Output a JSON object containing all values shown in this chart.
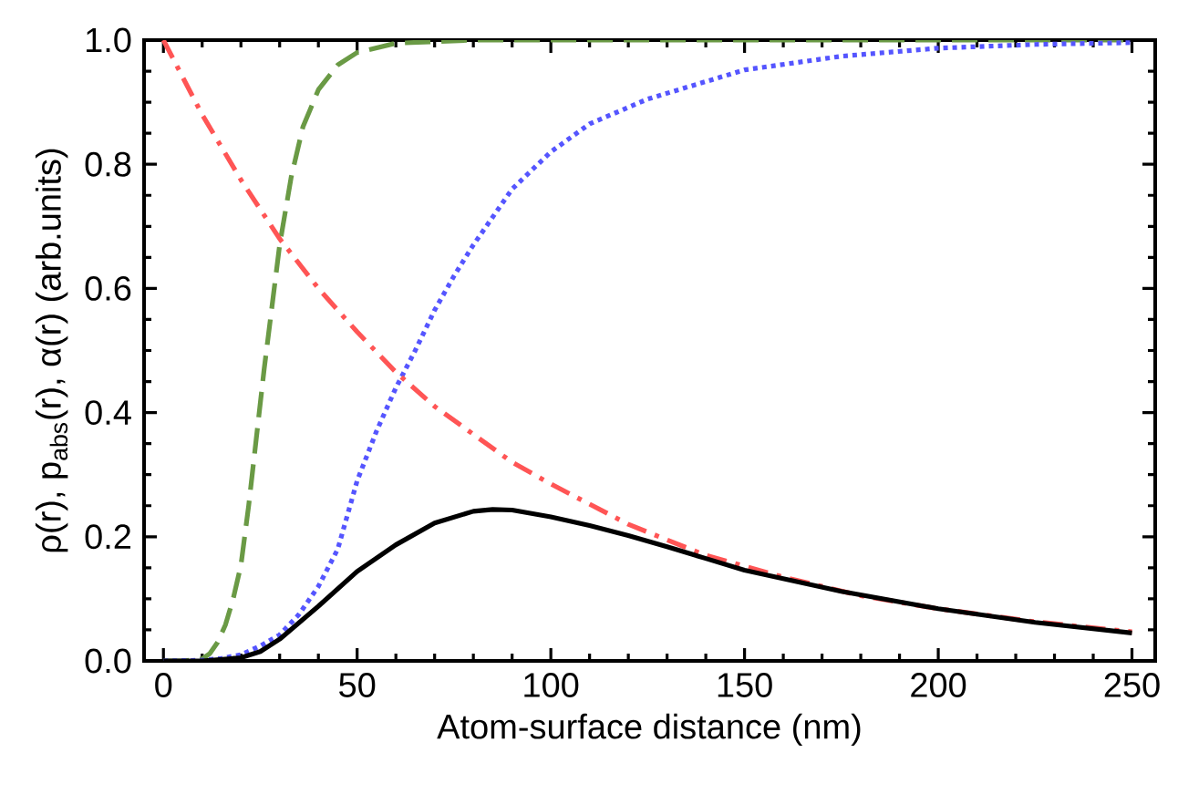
{
  "chart_data": {
    "type": "line",
    "xlabel": "Atom-surface distance (nm)",
    "ylabel": "ρ(r), p$_{abs}$(r), α(r)  (arb.units)",
    "xlim": [
      -5,
      256
    ],
    "ylim": [
      0,
      1
    ],
    "xticks": [
      0,
      50,
      100,
      150,
      200,
      250
    ],
    "yticks": [
      {
        "value": 0,
        "label": "0.0"
      },
      {
        "value": 0.2,
        "label": "0.2"
      },
      {
        "value": 0.4,
        "label": "0.4"
      },
      {
        "value": 0.6,
        "label": "0.6"
      },
      {
        "value": 0.8,
        "label": "0.8"
      },
      {
        "value": 1,
        "label": "1.0"
      }
    ],
    "series": [
      {
        "color": "#6a9a45",
        "line_style": "dashed",
        "x": [
          0,
          5,
          10,
          12,
          14,
          16,
          18,
          20,
          22,
          24,
          26,
          28,
          30,
          33,
          36,
          40,
          45,
          50,
          60,
          80,
          100,
          150,
          200,
          250
        ],
        "values": [
          0,
          0,
          0.003,
          0.012,
          0.03,
          0.058,
          0.1,
          0.154,
          0.25,
          0.36,
          0.47,
          0.57,
          0.67,
          0.78,
          0.86,
          0.92,
          0.96,
          0.98,
          0.995,
          1.0,
          1.0,
          1.0,
          1.0,
          1.0
        ]
      },
      {
        "color": "#5555ff",
        "line_style": "dotted",
        "x": [
          0,
          10,
          15,
          20,
          25,
          30,
          35,
          40,
          45,
          50,
          55,
          60,
          65,
          70,
          75,
          80,
          90,
          100,
          110,
          125,
          150,
          175,
          200,
          225,
          250
        ],
        "values": [
          0,
          0.001,
          0.004,
          0.01,
          0.024,
          0.042,
          0.075,
          0.12,
          0.18,
          0.29,
          0.37,
          0.44,
          0.5,
          0.565,
          0.62,
          0.67,
          0.76,
          0.82,
          0.865,
          0.905,
          0.952,
          0.974,
          0.987,
          0.993,
          0.996
        ]
      },
      {
        "color": "#ff5555",
        "line_style": "dashdot",
        "x": [
          0,
          10,
          20,
          30,
          40,
          50,
          60,
          70,
          80,
          90,
          100,
          120,
          140,
          160,
          180,
          200,
          225,
          250
        ],
        "values": [
          1.0,
          0.88,
          0.775,
          0.68,
          0.6,
          0.53,
          0.465,
          0.41,
          0.365,
          0.32,
          0.285,
          0.22,
          0.17,
          0.135,
          0.105,
          0.084,
          0.063,
          0.047
        ]
      },
      {
        "color": "#000000",
        "line_style": "solid",
        "x": [
          0,
          10,
          20,
          25,
          30,
          40,
          50,
          60,
          70,
          80,
          85,
          90,
          100,
          110,
          120,
          130,
          140,
          150,
          175,
          200,
          225,
          250
        ],
        "values": [
          0,
          0,
          0.005,
          0.015,
          0.035,
          0.088,
          0.144,
          0.187,
          0.222,
          0.241,
          0.244,
          0.243,
          0.232,
          0.218,
          0.202,
          0.184,
          0.165,
          0.146,
          0.112,
          0.084,
          0.062,
          0.045
        ]
      }
    ]
  }
}
